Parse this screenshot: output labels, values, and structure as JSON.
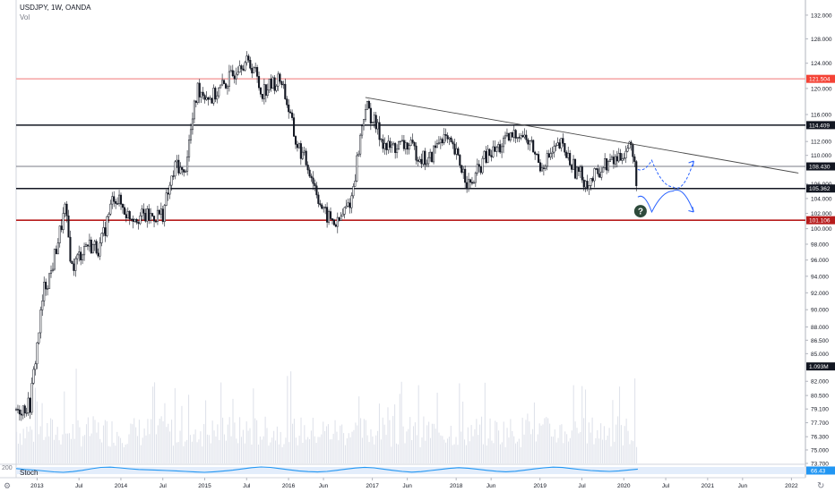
{
  "header": {
    "symbol_line": "USDJPY, 1W, OANDA",
    "volume_label": "Vol",
    "stoch_label": "Stoch",
    "stoch_bound": "200",
    "gear_icon": "gear-icon",
    "reload_icon": "reload-icon"
  },
  "colors": {
    "candle_up": "#131722",
    "candle_down": "#131722",
    "volume": "#e0e3eb",
    "red_level": "#f5a3a3",
    "dark_red_level": "#b71c1c",
    "black_level": "#131722",
    "gray_level": "#787b86",
    "trendline": "#4a4a4a",
    "projection": "#2962ff",
    "stoch_line": "#2196f3",
    "stoch_band": "#e3edfb",
    "question_badge": "#2e4a3b"
  },
  "chart_data": {
    "type": "candlestick",
    "title": "USDJPY, 1W, OANDA",
    "ylim": [
      73.7,
      134
    ],
    "y_scale": "log",
    "y_ticks": [
      "132.000",
      "128.000",
      "124.000",
      "120.000",
      "116.000",
      "112.000",
      "110.000",
      "106.000",
      "104.000",
      "102.000",
      "100.000",
      "98.000",
      "96.000",
      "94.000",
      "92.000",
      "90.000",
      "88.000",
      "86.500",
      "85.000",
      "82.000",
      "80.500",
      "79.100",
      "77.700",
      "76.300",
      "75.000",
      "73.700"
    ],
    "x_labels": [
      "2013",
      "Jul",
      "2014",
      "Jul",
      "2015",
      "Jul",
      "2016",
      "Jun",
      "2017",
      "Jun",
      "2018",
      "Jun",
      "2019",
      "Jul",
      "2020",
      "Jul",
      "2021",
      "Jun",
      "2022"
    ],
    "price_path": [
      {
        "x": "2012-10",
        "y": 79.0
      },
      {
        "x": "2012-12",
        "y": 79.5
      },
      {
        "x": "2013-01",
        "y": 86.0
      },
      {
        "x": "2013-02",
        "y": 92.5
      },
      {
        "x": "2013-03",
        "y": 94.5
      },
      {
        "x": "2013-05",
        "y": 102.5
      },
      {
        "x": "2013-06",
        "y": 95.0
      },
      {
        "x": "2013-08",
        "y": 98.0
      },
      {
        "x": "2013-10",
        "y": 97.5
      },
      {
        "x": "2013-12",
        "y": 104.5
      },
      {
        "x": "2014-02",
        "y": 101.8
      },
      {
        "x": "2014-05",
        "y": 101.5
      },
      {
        "x": "2014-07",
        "y": 102.0
      },
      {
        "x": "2014-09",
        "y": 109.0
      },
      {
        "x": "2014-10",
        "y": 107.0
      },
      {
        "x": "2014-12",
        "y": 120.0
      },
      {
        "x": "2015-02",
        "y": 118.5
      },
      {
        "x": "2015-05",
        "y": 122.0
      },
      {
        "x": "2015-06",
        "y": 124.5
      },
      {
        "x": "2015-08",
        "y": 123.5
      },
      {
        "x": "2015-09",
        "y": 119.5
      },
      {
        "x": "2015-12",
        "y": 121.5
      },
      {
        "x": "2016-02",
        "y": 112.0
      },
      {
        "x": "2016-04",
        "y": 108.0
      },
      {
        "x": "2016-06",
        "y": 102.0
      },
      {
        "x": "2016-08",
        "y": 100.5
      },
      {
        "x": "2016-10",
        "y": 104.0
      },
      {
        "x": "2016-12",
        "y": 117.5
      },
      {
        "x": "2017-03",
        "y": 111.0
      },
      {
        "x": "2017-06",
        "y": 111.5
      },
      {
        "x": "2017-09",
        "y": 109.0
      },
      {
        "x": "2017-11",
        "y": 113.0
      },
      {
        "x": "2018-01",
        "y": 110.0
      },
      {
        "x": "2018-03",
        "y": 105.5
      },
      {
        "x": "2018-05",
        "y": 109.5
      },
      {
        "x": "2018-07",
        "y": 111.0
      },
      {
        "x": "2018-10",
        "y": 113.5
      },
      {
        "x": "2018-12",
        "y": 111.0
      },
      {
        "x": "2019-01",
        "y": 108.5
      },
      {
        "x": "2019-04",
        "y": 111.5
      },
      {
        "x": "2019-06",
        "y": 108.0
      },
      {
        "x": "2019-08",
        "y": 106.0
      },
      {
        "x": "2019-10",
        "y": 108.5
      },
      {
        "x": "2019-12",
        "y": 109.5
      },
      {
        "x": "2020-02",
        "y": 111.5
      },
      {
        "x": "2020-03",
        "y": 105.5
      }
    ],
    "levels": [
      {
        "price": 121.504,
        "label": "121.504",
        "style": "red"
      },
      {
        "price": 114.409,
        "label": "114.409",
        "style": "black"
      },
      {
        "price": 108.43,
        "label": "108.430",
        "style": "gray"
      },
      {
        "price": 105.362,
        "label": "105.362",
        "style": "black"
      },
      {
        "price": 101.106,
        "label": "101.106",
        "style": "dark-red"
      }
    ],
    "trendline": {
      "from": {
        "x": "2016-12",
        "y": 118.6
      },
      "to": {
        "x": "2022-02",
        "y": 107.5
      }
    },
    "projection_up": [
      {
        "x": "2020-03",
        "y": 108.0
      },
      {
        "x": "2020-05",
        "y": 109.3
      },
      {
        "x": "2020-08",
        "y": 105.6
      },
      {
        "x": "2020-11",
        "y": 109.2
      }
    ],
    "projection_down": [
      {
        "x": "2020-03",
        "y": 104.2
      },
      {
        "x": "2020-05",
        "y": 102.2
      },
      {
        "x": "2020-08",
        "y": 105.0
      },
      {
        "x": "2020-11",
        "y": 102.2
      }
    ],
    "annotation": {
      "x": "2020-03",
      "y": 102.3,
      "text": "?"
    },
    "volume_badge": "1.093M",
    "stoch_badge": "66.43",
    "stoch_path": [
      72,
      62,
      55,
      45,
      35,
      30,
      38,
      52,
      70,
      85,
      88,
      80,
      70,
      62,
      58,
      54,
      50,
      46,
      40,
      34,
      30,
      36,
      44,
      54,
      68,
      82,
      90,
      85,
      72,
      58,
      46,
      38,
      34,
      40,
      52,
      66,
      78,
      86,
      80,
      66,
      52,
      40,
      32,
      38,
      50,
      62,
      74,
      82,
      76,
      64,
      52,
      42,
      36,
      42,
      54,
      68,
      80,
      88,
      84,
      72,
      60,
      50,
      44,
      40,
      46,
      56,
      66
    ]
  }
}
